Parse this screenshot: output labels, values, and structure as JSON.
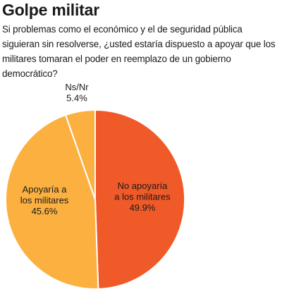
{
  "chart_data": {
    "type": "pie",
    "title": "Golpe militar",
    "subtitle": "Si problemas como el económico y el de seguridad pública siguieran sin resolverse, ¿usted estaría dispuesto a apoyar que los militares tomaran el poder en reemplazo de un gobierno democrático?",
    "slices": [
      {
        "label_lines": [
          "No apoyaría",
          "a los militares"
        ],
        "value": 49.9,
        "value_label": "49.9%",
        "color": "#f05a28"
      },
      {
        "label_lines": [
          "Apoyaría a",
          "los militares"
        ],
        "value": 45.6,
        "value_label": "45.6%",
        "color": "#fbb040"
      },
      {
        "label_lines": [
          "Ns/Nr"
        ],
        "value": 5.4,
        "value_label": "5.4%",
        "color": "#fbb040"
      }
    ],
    "slice_border_color": "#ffffff"
  }
}
